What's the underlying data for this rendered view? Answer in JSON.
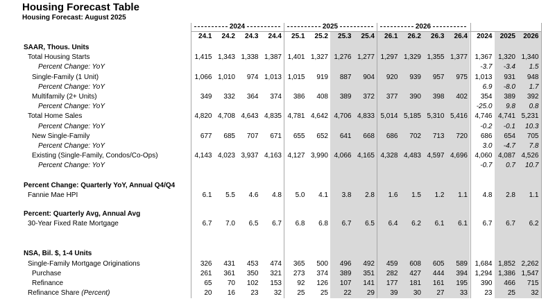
{
  "header": {
    "title": "Housing Forecast Table",
    "subtitle": "Housing Forecast: August 2025"
  },
  "table": {
    "year_groups": [
      "2024",
      "2025",
      "2026"
    ],
    "quarter_columns": [
      "24.1",
      "24.2",
      "24.3",
      "24.4",
      "25.1",
      "25.2",
      "25.3",
      "25.4",
      "26.1",
      "26.2",
      "26.3",
      "26.4"
    ],
    "annual_columns": [
      "2024",
      "2025",
      "2026"
    ],
    "sections": [
      {
        "title": "SAAR, Thous. Units",
        "rows": [
          {
            "label": "Total Housing Starts",
            "quarterly": [
              "1,415",
              "1,343",
              "1,338",
              "1,387",
              "1,401",
              "1,327",
              "1,276",
              "1,277",
              "1,297",
              "1,329",
              "1,355",
              "1,377"
            ],
            "annual": [
              "1,367",
              "1,320",
              "1,340"
            ]
          },
          {
            "label": "Percent Change: YoY",
            "annual": [
              "-3.7",
              "-3.4",
              "1.5"
            ]
          },
          {
            "label": "Single-Family (1 Unit)",
            "quarterly": [
              "1,066",
              "1,010",
              "974",
              "1,013",
              "1,015",
              "919",
              "887",
              "904",
              "920",
              "939",
              "957",
              "975"
            ],
            "annual": [
              "1,013",
              "931",
              "948"
            ]
          },
          {
            "label": "Percent Change: YoY",
            "annual": [
              "6.9",
              "-8.0",
              "1.7"
            ]
          },
          {
            "label": "Multifamily (2+ Units)",
            "quarterly": [
              "349",
              "332",
              "364",
              "374",
              "386",
              "408",
              "389",
              "372",
              "377",
              "390",
              "398",
              "402"
            ],
            "annual": [
              "354",
              "389",
              "392"
            ]
          },
          {
            "label": "Percent Change: YoY",
            "annual": [
              "-25.0",
              "9.8",
              "0.8"
            ]
          },
          {
            "label": "Total Home Sales",
            "quarterly": [
              "4,820",
              "4,708",
              "4,643",
              "4,835",
              "4,781",
              "4,642",
              "4,706",
              "4,833",
              "5,014",
              "5,185",
              "5,310",
              "5,416"
            ],
            "annual": [
              "4,746",
              "4,741",
              "5,231"
            ]
          },
          {
            "label": "Percent Change: YoY",
            "annual": [
              "-0.2",
              "-0.1",
              "10.3"
            ]
          },
          {
            "label": "New Single-Family",
            "quarterly": [
              "677",
              "685",
              "707",
              "671",
              "655",
              "652",
              "641",
              "668",
              "686",
              "702",
              "713",
              "720"
            ],
            "annual": [
              "686",
              "654",
              "705"
            ]
          },
          {
            "label": "Percent Change: YoY",
            "annual": [
              "3.0",
              "-4.7",
              "7.8"
            ]
          },
          {
            "label": "Existing (Single-Family, Condos/Co-Ops)",
            "quarterly": [
              "4,143",
              "4,023",
              "3,937",
              "4,163",
              "4,127",
              "3,990",
              "4,066",
              "4,165",
              "4,328",
              "4,483",
              "4,597",
              "4,696"
            ],
            "annual": [
              "4,060",
              "4,087",
              "4,526"
            ]
          },
          {
            "label": "Percent Change: YoY",
            "annual": [
              "-0.7",
              "0.7",
              "10.7"
            ]
          }
        ]
      },
      {
        "title": "Percent Change: Quarterly YoY, Annual Q4/Q4",
        "rows": [
          {
            "label": "Fannie Mae HPI",
            "quarterly": [
              "6.1",
              "5.5",
              "4.6",
              "4.8",
              "5.0",
              "4.1",
              "3.8",
              "2.8",
              "1.6",
              "1.5",
              "1.2",
              "1.1"
            ],
            "annual": [
              "4.8",
              "2.8",
              "1.1"
            ]
          }
        ]
      },
      {
        "title": "Percent: Quarterly Avg, Annual Avg",
        "rows": [
          {
            "label": "30-Year Fixed Rate Mortgage",
            "quarterly": [
              "6.7",
              "7.0",
              "6.5",
              "6.7",
              "6.8",
              "6.8",
              "6.7",
              "6.5",
              "6.4",
              "6.2",
              "6.1",
              "6.1"
            ],
            "annual": [
              "6.7",
              "6.7",
              "6.2"
            ]
          }
        ]
      },
      {
        "title": "NSA, Bil. $, 1-4 Units",
        "rows": [
          {
            "label": "Single-Family Mortgage Originations",
            "quarterly": [
              "326",
              "431",
              "453",
              "474",
              "365",
              "500",
              "496",
              "492",
              "459",
              "608",
              "605",
              "589"
            ],
            "annual": [
              "1,684",
              "1,852",
              "2,262"
            ]
          },
          {
            "label": "Purchase",
            "quarterly": [
              "261",
              "361",
              "350",
              "321",
              "273",
              "374",
              "389",
              "351",
              "282",
              "427",
              "444",
              "394"
            ],
            "annual": [
              "1,294",
              "1,386",
              "1,547"
            ]
          },
          {
            "label": "Refinance",
            "quarterly": [
              "65",
              "70",
              "102",
              "153",
              "92",
              "126",
              "107",
              "141",
              "177",
              "181",
              "161",
              "195"
            ],
            "annual": [
              "390",
              "466",
              "715"
            ]
          },
          {
            "label": "Refinance Share",
            "label_note": "(Percent)",
            "quarterly": [
              "20",
              "16",
              "23",
              "32",
              "25",
              "25",
              "22",
              "29",
              "39",
              "30",
              "27",
              "33"
            ],
            "annual": [
              "23",
              "25",
              "32"
            ]
          }
        ]
      }
    ]
  }
}
